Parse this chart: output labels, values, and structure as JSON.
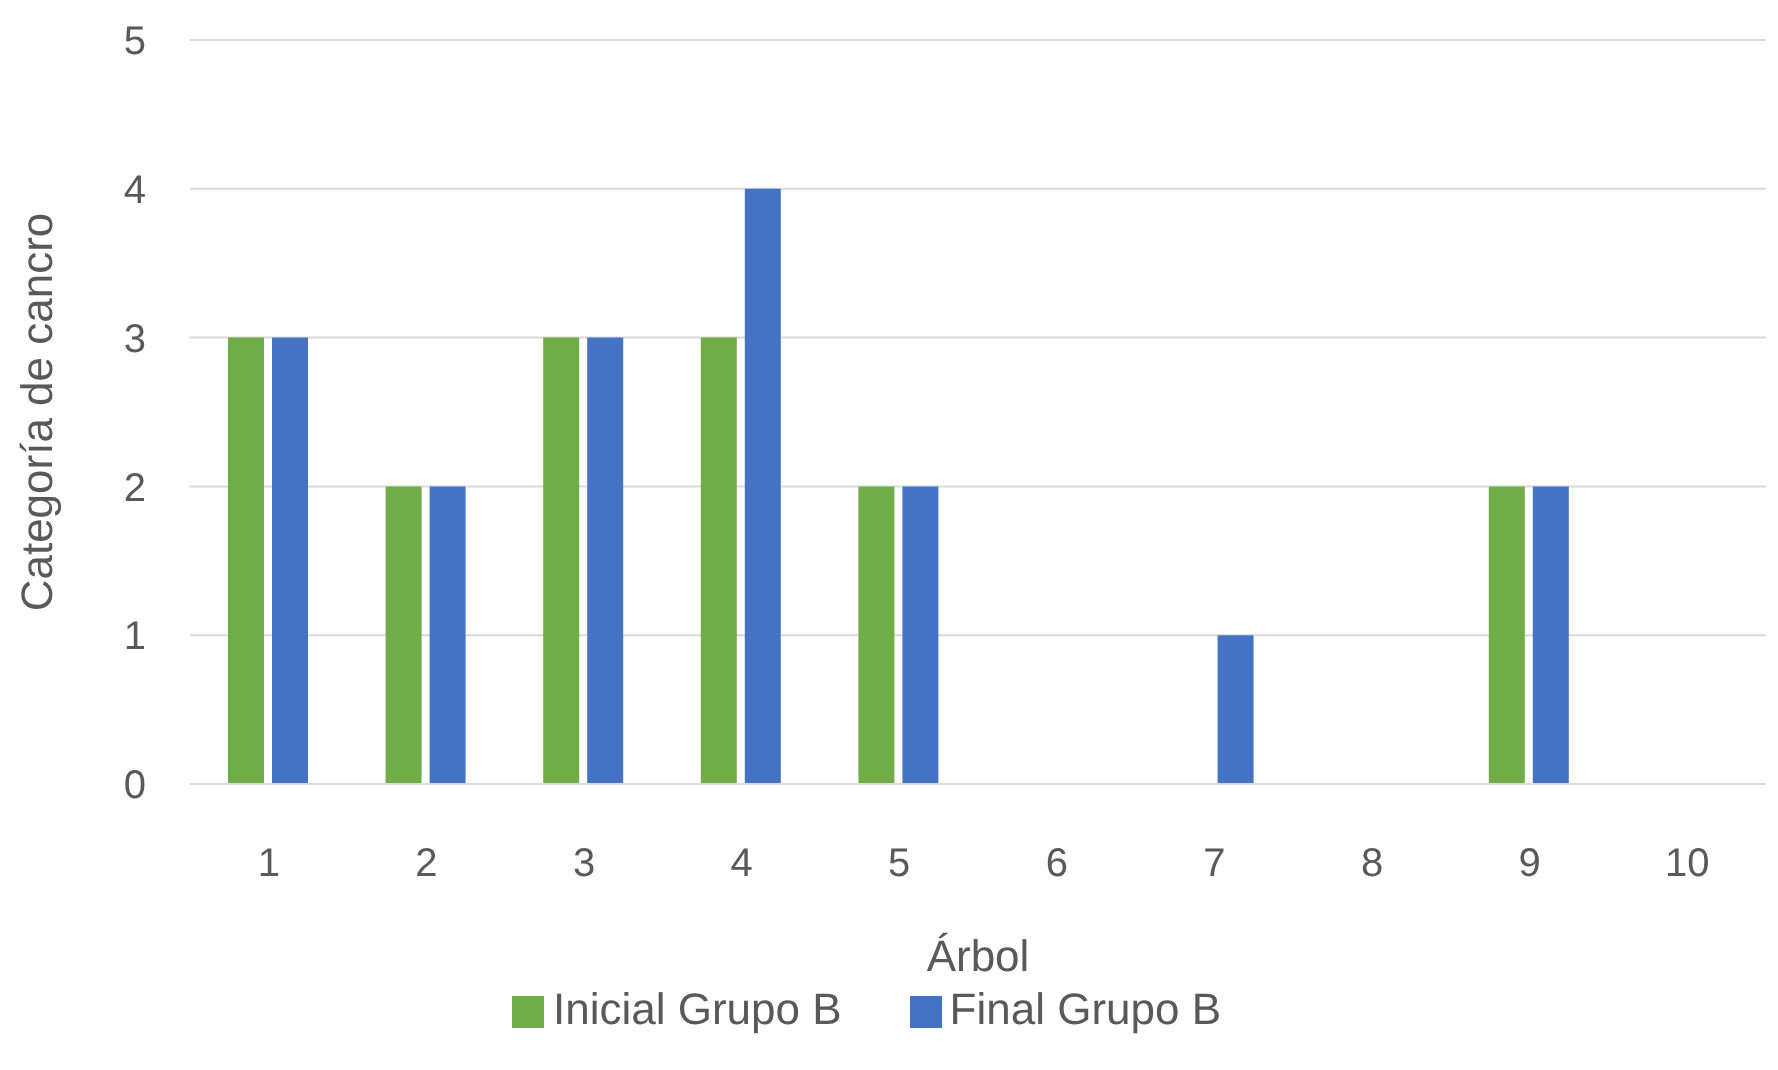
{
  "chart_data": {
    "type": "bar",
    "xlabel": "Árbol",
    "ylabel": "Categoría de cancro",
    "categories": [
      "1",
      "2",
      "3",
      "4",
      "5",
      "6",
      "7",
      "8",
      "9",
      "10"
    ],
    "series": [
      {
        "name": "Inicial Grupo B",
        "color": "#70ad47",
        "values": [
          3,
          2,
          3,
          3,
          2,
          0,
          0,
          0,
          2,
          0
        ]
      },
      {
        "name": "Final Grupo B",
        "color": "#4472c4",
        "values": [
          3,
          2,
          3,
          4,
          2,
          0,
          1,
          0,
          2,
          0
        ]
      }
    ],
    "ylim": [
      0,
      5
    ],
    "yticks": [
      0,
      1,
      2,
      3,
      4,
      5
    ],
    "grid": "y",
    "legend": "bottom"
  }
}
